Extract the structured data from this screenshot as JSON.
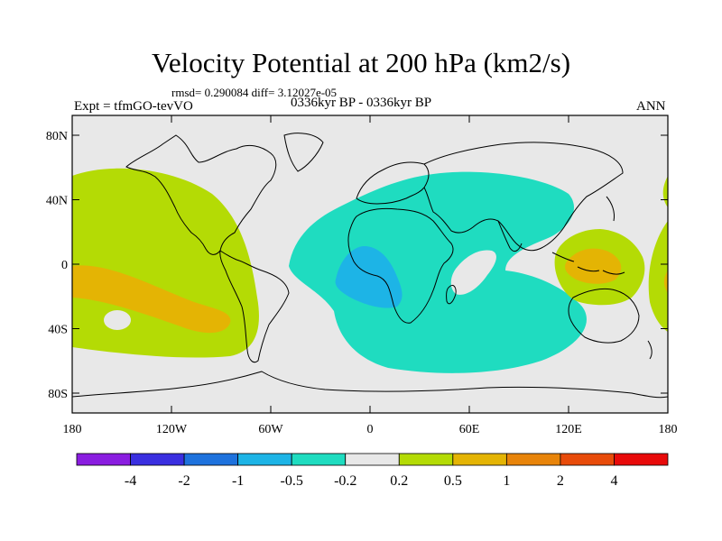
{
  "title": "Velocity Potential at 200 hPa (km2/s)",
  "stats": "rmsd= 0.290084  diff= 3.12027e-05",
  "experiment": "Expt = tfmGO-tevVO",
  "period": "0336kyr BP - 0336kyr BP",
  "season": "ANN",
  "axes": {
    "lat_labels": [
      "80N",
      "40N",
      "0",
      "40S",
      "80S"
    ],
    "lon_labels": [
      "180",
      "120W",
      "60W",
      "0",
      "60E",
      "120E",
      "180"
    ]
  },
  "colorbar": {
    "labels": [
      "-4",
      "-2",
      "-1",
      "-0.5",
      "-0.2",
      "0.2",
      "0.5",
      "1",
      "2",
      "4"
    ],
    "colors": [
      "#8a1de0",
      "#3a2fe0",
      "#1e72dd",
      "#1db4e6",
      "#1fdcc0",
      "#e8e8e8",
      "#b4db05",
      "#e4b404",
      "#e8840a",
      "#e84b0a",
      "#e80a0a"
    ]
  },
  "map_colors": {
    "ocean_background": "#e8e8e8",
    "land_outline": "#000000",
    "positive_light": "#b4db05",
    "positive_mid": "#e4b404",
    "negative_light": "#1fdcc0",
    "negative_mid": "#1db4e6"
  }
}
